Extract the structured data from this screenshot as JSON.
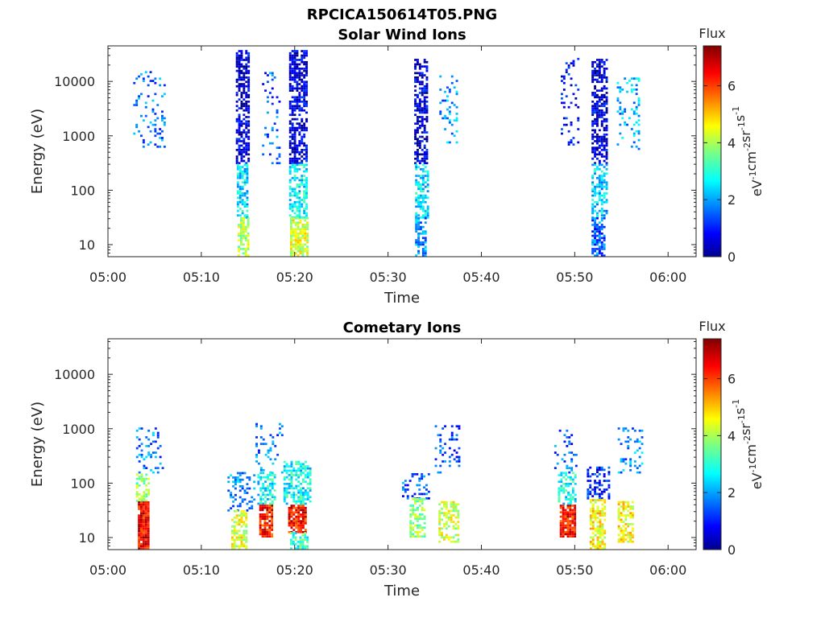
{
  "figure_title": "RPCICA150614T05.PNG",
  "colorbar": {
    "title": "Flux",
    "ticks": [
      "0",
      "2",
      "4",
      "6"
    ],
    "label_parts": [
      "eV",
      "-1",
      "cm",
      "-2",
      "sr",
      "-1",
      "s",
      "-1"
    ],
    "range": [
      0,
      7.4
    ],
    "colormap": "jet"
  },
  "time_ticks": [
    "05:00",
    "05:10",
    "05:20",
    "05:30",
    "05:40",
    "05:50",
    "06:00"
  ],
  "energy_ticks": [
    "10",
    "100",
    "1000",
    "10000"
  ],
  "xlabel": "Time",
  "ylabel": "Energy (eV)",
  "chart_data": [
    {
      "type": "heatmap",
      "title": "Solar Wind Ions",
      "xlabel": "Time",
      "ylabel": "Energy (eV)",
      "y_scale": "log",
      "xlim_minutes_after_0500": [
        0,
        63
      ],
      "ylim_eV": [
        6,
        45000
      ],
      "clusters": [
        {
          "t0": 2.7,
          "t1": 6.0,
          "e_lo": 600,
          "e_hi": 15000,
          "level": 1.8,
          "density": 0.18
        },
        {
          "t0": 13.7,
          "t1": 15.2,
          "e_lo": 300,
          "e_hi": 35000,
          "level": 0.6,
          "density": 0.65
        },
        {
          "t0": 13.8,
          "t1": 15.0,
          "e_lo": 30,
          "e_hi": 300,
          "level": 2.6,
          "density": 0.6
        },
        {
          "t0": 13.9,
          "t1": 15.0,
          "e_lo": 6,
          "e_hi": 30,
          "level": 4.0,
          "density": 0.7
        },
        {
          "t0": 16.5,
          "t1": 18.5,
          "e_lo": 300,
          "e_hi": 15000,
          "level": 1.6,
          "density": 0.12
        },
        {
          "t0": 19.4,
          "t1": 21.4,
          "e_lo": 300,
          "e_hi": 35000,
          "level": 0.6,
          "density": 0.65
        },
        {
          "t0": 19.4,
          "t1": 21.3,
          "e_lo": 30,
          "e_hi": 300,
          "level": 2.7,
          "density": 0.65
        },
        {
          "t0": 19.5,
          "t1": 21.3,
          "e_lo": 6,
          "e_hi": 30,
          "level": 4.3,
          "density": 0.75
        },
        {
          "t0": 32.8,
          "t1": 34.3,
          "e_lo": 300,
          "e_hi": 25000,
          "level": 0.6,
          "density": 0.6
        },
        {
          "t0": 32.9,
          "t1": 34.3,
          "e_lo": 30,
          "e_hi": 300,
          "level": 2.5,
          "density": 0.55
        },
        {
          "t0": 32.9,
          "t1": 34.1,
          "e_lo": 6,
          "e_hi": 30,
          "level": 2.0,
          "density": 0.55
        },
        {
          "t0": 35.5,
          "t1": 37.5,
          "e_lo": 600,
          "e_hi": 12000,
          "level": 2.0,
          "density": 0.15
        },
        {
          "t0": 48.5,
          "t1": 50.5,
          "e_lo": 600,
          "e_hi": 25000,
          "level": 1.0,
          "density": 0.15
        },
        {
          "t0": 51.8,
          "t1": 53.5,
          "e_lo": 300,
          "e_hi": 25000,
          "level": 0.6,
          "density": 0.62
        },
        {
          "t0": 51.8,
          "t1": 53.4,
          "e_lo": 30,
          "e_hi": 300,
          "level": 2.4,
          "density": 0.55
        },
        {
          "t0": 51.8,
          "t1": 53.3,
          "e_lo": 6,
          "e_hi": 30,
          "level": 1.6,
          "density": 0.6
        },
        {
          "t0": 54.5,
          "t1": 57.0,
          "e_lo": 500,
          "e_hi": 12000,
          "level": 2.2,
          "density": 0.2
        }
      ]
    },
    {
      "type": "heatmap",
      "title": "Cometary Ions",
      "xlabel": "Time",
      "ylabel": "Energy (eV)",
      "y_scale": "log",
      "xlim_minutes_after_0500": [
        0,
        63
      ],
      "ylim_eV": [
        6,
        45000
      ],
      "clusters": [
        {
          "t0": 3.0,
          "t1": 6.0,
          "e_lo": 150,
          "e_hi": 1000,
          "level": 1.8,
          "density": 0.2
        },
        {
          "t0": 3.0,
          "t1": 4.3,
          "e_lo": 45,
          "e_hi": 150,
          "level": 3.8,
          "density": 0.6
        },
        {
          "t0": 3.2,
          "t1": 4.4,
          "e_lo": 6,
          "e_hi": 45,
          "level": 6.6,
          "density": 0.95
        },
        {
          "t0": 12.8,
          "t1": 15.6,
          "e_lo": 30,
          "e_hi": 150,
          "level": 2.0,
          "density": 0.3
        },
        {
          "t0": 13.2,
          "t1": 14.8,
          "e_lo": 6,
          "e_hi": 30,
          "level": 4.4,
          "density": 0.6
        },
        {
          "t0": 15.8,
          "t1": 18.6,
          "e_lo": 150,
          "e_hi": 1200,
          "level": 1.8,
          "density": 0.2
        },
        {
          "t0": 16.0,
          "t1": 18.0,
          "e_lo": 40,
          "e_hi": 150,
          "level": 2.8,
          "density": 0.6
        },
        {
          "t0": 16.2,
          "t1": 17.6,
          "e_lo": 10,
          "e_hi": 40,
          "level": 6.3,
          "density": 0.85
        },
        {
          "t0": 18.8,
          "t1": 21.6,
          "e_lo": 40,
          "e_hi": 250,
          "level": 2.8,
          "density": 0.6
        },
        {
          "t0": 19.3,
          "t1": 21.3,
          "e_lo": 12,
          "e_hi": 40,
          "level": 6.4,
          "density": 0.85
        },
        {
          "t0": 19.5,
          "t1": 21.5,
          "e_lo": 6,
          "e_hi": 12,
          "level": 3.2,
          "density": 0.6
        },
        {
          "t0": 31.5,
          "t1": 34.5,
          "e_lo": 50,
          "e_hi": 150,
          "level": 1.6,
          "density": 0.3
        },
        {
          "t0": 32.3,
          "t1": 34.0,
          "e_lo": 10,
          "e_hi": 50,
          "level": 3.8,
          "density": 0.55
        },
        {
          "t0": 35.0,
          "t1": 37.6,
          "e_lo": 150,
          "e_hi": 1200,
          "level": 1.5,
          "density": 0.15
        },
        {
          "t0": 35.4,
          "t1": 37.5,
          "e_lo": 8,
          "e_hi": 45,
          "level": 4.3,
          "density": 0.6
        },
        {
          "t0": 47.8,
          "t1": 50.2,
          "e_lo": 150,
          "e_hi": 900,
          "level": 1.6,
          "density": 0.15
        },
        {
          "t0": 48.2,
          "t1": 50.0,
          "e_lo": 40,
          "e_hi": 150,
          "level": 2.8,
          "density": 0.5
        },
        {
          "t0": 48.4,
          "t1": 50.0,
          "e_lo": 10,
          "e_hi": 40,
          "level": 6.4,
          "density": 0.85
        },
        {
          "t0": 51.3,
          "t1": 53.6,
          "e_lo": 50,
          "e_hi": 200,
          "level": 1.2,
          "density": 0.4
        },
        {
          "t0": 51.6,
          "t1": 53.2,
          "e_lo": 6,
          "e_hi": 50,
          "level": 4.6,
          "density": 0.7
        },
        {
          "t0": 54.6,
          "t1": 57.2,
          "e_lo": 150,
          "e_hi": 1000,
          "level": 2.0,
          "density": 0.2
        },
        {
          "t0": 54.6,
          "t1": 56.2,
          "e_lo": 8,
          "e_hi": 45,
          "level": 4.6,
          "density": 0.65
        }
      ]
    }
  ]
}
